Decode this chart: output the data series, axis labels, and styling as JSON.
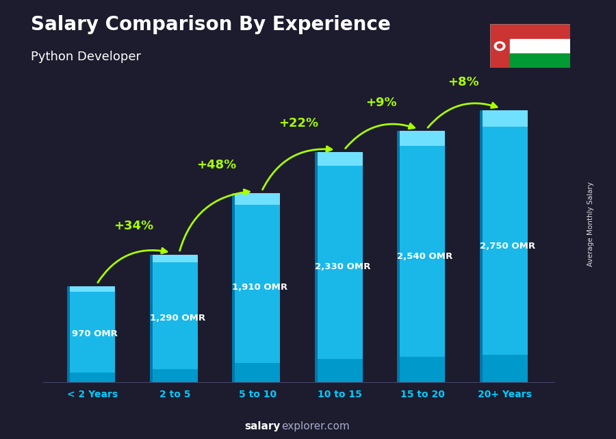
{
  "title": "Salary Comparison By Experience",
  "subtitle": "Python Developer",
  "categories": [
    "< 2 Years",
    "2 to 5",
    "5 to 10",
    "10 to 15",
    "15 to 20",
    "20+ Years"
  ],
  "values": [
    970,
    1290,
    1910,
    2330,
    2540,
    2750
  ],
  "value_labels": [
    "970 OMR",
    "1,290 OMR",
    "1,910 OMR",
    "2,330 OMR",
    "2,540 OMR",
    "2,750 OMR"
  ],
  "pct_changes": [
    null,
    "+34%",
    "+48%",
    "+22%",
    "+9%",
    "+8%"
  ],
  "bar_main_color": "#1ab8e8",
  "bar_top_color": "#70e0ff",
  "bar_bot_color": "#0099cc",
  "bar_side_color": "#0077aa",
  "bg_color": "#1c1c2e",
  "title_color": "#ffffff",
  "subtitle_color": "#ffffff",
  "label_color": "#ffffff",
  "pct_color": "#aaff00",
  "xticklabel_color": "#00ccff",
  "watermark_bold": "salary",
  "watermark_rest": "explorer.com",
  "ylabel_text": "Average Monthly Salary",
  "ylim": [
    0,
    3200
  ],
  "flag_red": "#cc3333",
  "flag_white": "#ffffff",
  "flag_green": "#009933"
}
